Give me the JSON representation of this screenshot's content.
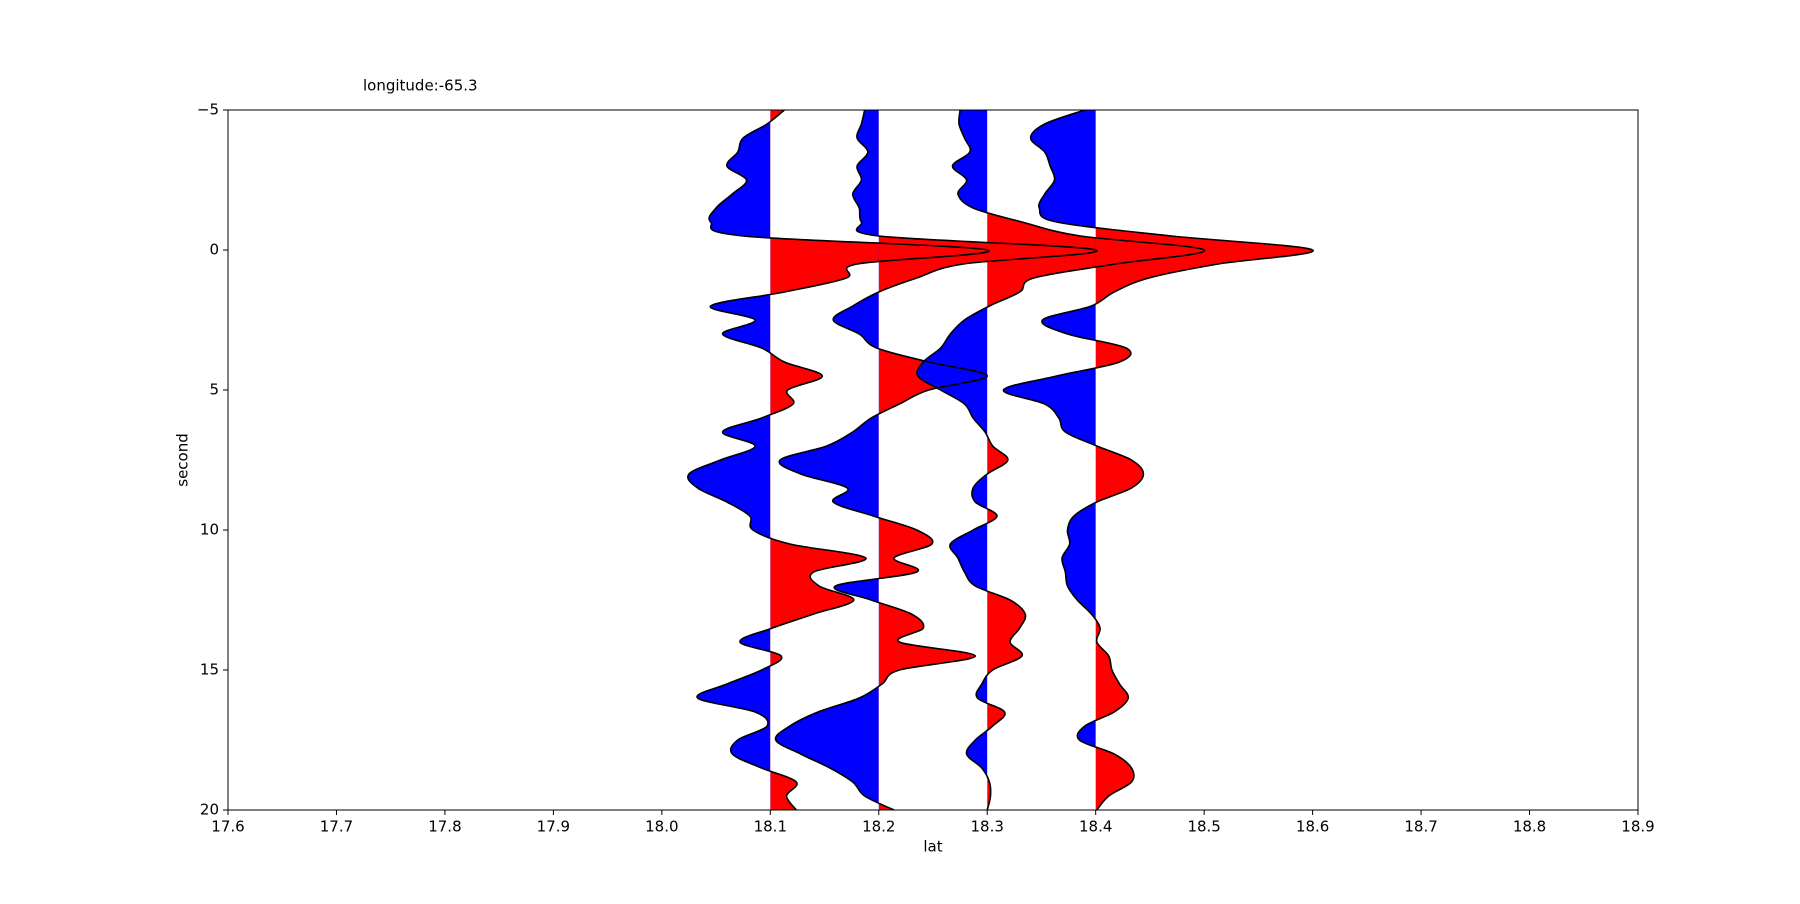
{
  "chart_data": {
    "type": "wiggle",
    "title": "longitude:-65.3",
    "x_label": "lat",
    "y_label": "second",
    "xlim": [
      17.6,
      18.9
    ],
    "xticks": [
      17.6,
      17.7,
      17.8,
      17.9,
      {
        "value": 18,
        "label": "18.0"
      },
      18.1,
      18.2,
      18.3,
      18.4,
      18.5,
      18.6,
      18.7,
      18.8,
      18.9
    ],
    "ylim": [
      -5,
      20
    ],
    "y_inverted": true,
    "yticks": [
      {
        "value": -5,
        "label": "−5"
      },
      0,
      5,
      10,
      15,
      20
    ],
    "positive_color": "#ff0000",
    "negative_color": "#0000ff",
    "line_color": "#000000",
    "times": [
      -5,
      -4.5,
      -4,
      -3.5,
      -3,
      -2.5,
      -2,
      -1.5,
      -1,
      -0.5,
      0,
      0.5,
      1,
      1.5,
      2,
      2.5,
      3,
      3.5,
      4,
      4.5,
      5,
      5.5,
      6,
      6.5,
      7,
      7.5,
      8,
      8.5,
      9,
      9.5,
      10,
      10.5,
      11,
      11.5,
      12,
      12.5,
      13,
      13.5,
      14,
      14.5,
      15,
      15.5,
      16,
      16.5,
      17,
      17.5,
      18,
      18.5,
      19,
      19.5,
      20
    ],
    "series": [
      {
        "baseline": 18.1,
        "values": [
          18.113,
          18.097,
          18.075,
          18.07,
          18.06,
          18.078,
          18.065,
          18.05,
          18.045,
          18.075,
          18.3,
          18.18,
          18.17,
          18.113,
          18.045,
          18.086,
          18.056,
          18.092,
          18.113,
          18.148,
          18.116,
          18.121,
          18.092,
          18.056,
          18.086,
          18.054,
          18.025,
          18.033,
          18.06,
          18.081,
          18.084,
          18.118,
          18.188,
          18.14,
          18.145,
          18.177,
          18.14,
          18.102,
          18.072,
          18.11,
          18.092,
          18.06,
          18.033,
          18.086,
          18.097,
          18.07,
          18.065,
          18.092,
          18.124,
          18.115,
          18.124
        ]
      },
      {
        "baseline": 18.2,
        "values": [
          18.187,
          18.184,
          18.18,
          18.19,
          18.18,
          18.184,
          18.176,
          18.182,
          18.184,
          18.2,
          18.4,
          18.278,
          18.235,
          18.2,
          18.176,
          18.158,
          18.182,
          18.198,
          18.246,
          18.3,
          18.246,
          18.219,
          18.193,
          18.176,
          18.152,
          18.109,
          18.128,
          18.171,
          18.158,
          18.195,
          18.235,
          18.249,
          18.214,
          18.235,
          18.16,
          18.193,
          18.23,
          18.241,
          18.219,
          18.289,
          18.219,
          18.203,
          18.182,
          18.144,
          18.118,
          18.105,
          18.128,
          18.155,
          18.176,
          18.187,
          18.214
        ]
      },
      {
        "baseline": 18.3,
        "values": [
          18.275,
          18.274,
          18.279,
          18.284,
          18.268,
          18.281,
          18.273,
          18.287,
          18.332,
          18.386,
          18.5,
          18.418,
          18.343,
          18.33,
          18.302,
          18.279,
          18.266,
          18.257,
          18.241,
          18.236,
          18.257,
          18.279,
          18.287,
          18.298,
          18.305,
          18.319,
          18.3,
          18.287,
          18.289,
          18.309,
          18.287,
          18.266,
          18.273,
          18.279,
          18.289,
          18.321,
          18.335,
          18.33,
          18.321,
          18.332,
          18.305,
          18.295,
          18.291,
          18.316,
          18.305,
          18.289,
          18.281,
          18.295,
          18.302,
          18.303,
          18.3
        ]
      },
      {
        "baseline": 18.4,
        "values": [
          18.39,
          18.353,
          18.34,
          18.353,
          18.358,
          18.362,
          18.353,
          18.348,
          18.364,
          18.47,
          18.6,
          18.513,
          18.449,
          18.417,
          18.396,
          18.351,
          18.374,
          18.428,
          18.422,
          18.364,
          18.315,
          18.353,
          18.366,
          18.372,
          18.401,
          18.433,
          18.444,
          18.433,
          18.401,
          18.38,
          18.374,
          18.376,
          18.369,
          18.372,
          18.374,
          18.383,
          18.396,
          18.404,
          18.401,
          18.412,
          18.415,
          18.422,
          18.43,
          18.417,
          18.39,
          18.385,
          18.417,
          18.433,
          18.433,
          18.412,
          18.401
        ]
      }
    ]
  }
}
